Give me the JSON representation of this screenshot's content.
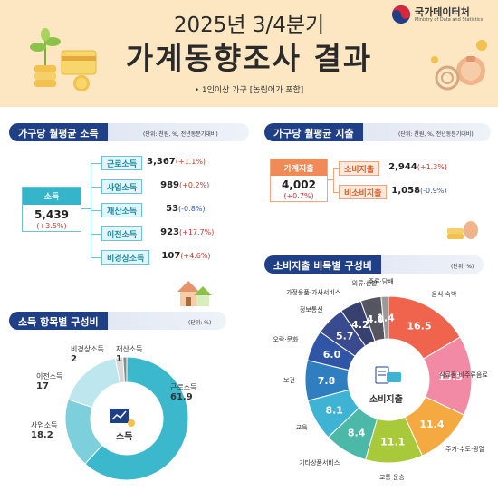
{
  "header": {
    "year_quarter": "2025년 3/4분기",
    "title": "가계동향조사 결과",
    "subtitle": "• 1인이상 가구 [농림어가 포함]",
    "org_name": "국가데이터처",
    "org_name_en": "Ministry of Data and Statistics"
  },
  "income": {
    "section_title": "가구당 월평균 소득",
    "unit": "(단위: 천원, %, 전년동분기대비)",
    "total": {
      "label": "소득",
      "value": "5,439",
      "change": "(+3.5%)"
    },
    "items": [
      {
        "label": "근로소득",
        "value": "3,367",
        "change": "(+1.1%)",
        "negative": false
      },
      {
        "label": "사업소득",
        "value": "989",
        "change": "(+0.2%)",
        "negative": false
      },
      {
        "label": "재산소득",
        "value": "53",
        "change": "(-0.8%)",
        "negative": true
      },
      {
        "label": "이전소득",
        "value": "923",
        "change": "(+17.7%)",
        "negative": false
      },
      {
        "label": "비경상소득",
        "value": "107",
        "change": "(+4.6%)",
        "negative": false
      }
    ]
  },
  "expense": {
    "section_title": "가구당 월평균 지출",
    "unit": "(단위: 천원, %, 전년동분기대비)",
    "total": {
      "label": "가계지출",
      "value": "4,002",
      "change": "(+0.7%)"
    },
    "items": [
      {
        "label": "소비지출",
        "value": "2,944",
        "change": "(+1.3%)",
        "negative": false
      },
      {
        "label": "비소비지출",
        "value": "1,058",
        "change": "(-0.9%)",
        "negative": true
      }
    ]
  },
  "income_composition": {
    "section_title": "소득 항목별 구성비",
    "unit": "(단위: %)",
    "center_label": "소득"
  },
  "consumption_composition": {
    "section_title": "소비지출 비목별 구성비",
    "unit": "(단위: %)",
    "center_label": "소비지출"
  },
  "colors": {
    "navy": "#1f3f87",
    "teal": "#36b4c9",
    "orange": "#f08a57",
    "header_bg": "#fde7c3",
    "positive": "#c0392b",
    "negative": "#2d5aa8"
  },
  "chart_data": [
    {
      "type": "pie",
      "title": "소득 항목별 구성비",
      "categories": [
        "근로소득",
        "사업소득",
        "이전소득",
        "비경상소득",
        "재산소득"
      ],
      "values": [
        61.9,
        18.2,
        17.0,
        2.0,
        1.0
      ],
      "colors": [
        "#3cb8cc",
        "#7ecfdc",
        "#bde6ee",
        "#d8d8d8",
        "#8a8a8a"
      ]
    },
    {
      "type": "pie",
      "title": "소비지출 비목별 구성비",
      "categories": [
        "음식·숙박",
        "식료품·비주류음료",
        "주거·수도·광열",
        "교통·운송",
        "기타상품서비스",
        "교육",
        "보건",
        "오락·문화",
        "정보통신",
        "가정용품·가사서비스",
        "의류·신발",
        "주류·담배"
      ],
      "values": [
        16.5,
        15.5,
        11.4,
        11.1,
        8.4,
        8.1,
        7.8,
        6.0,
        5.7,
        4.2,
        4.0,
        1.4
      ],
      "colors": [
        "#f0634c",
        "#f28aa6",
        "#f5a941",
        "#a8c93a",
        "#4cb8a8",
        "#3fb3d3",
        "#2f7fc0",
        "#3155a6",
        "#3a4a8e",
        "#37406e",
        "#55555f",
        "#9a9a9a"
      ]
    }
  ]
}
